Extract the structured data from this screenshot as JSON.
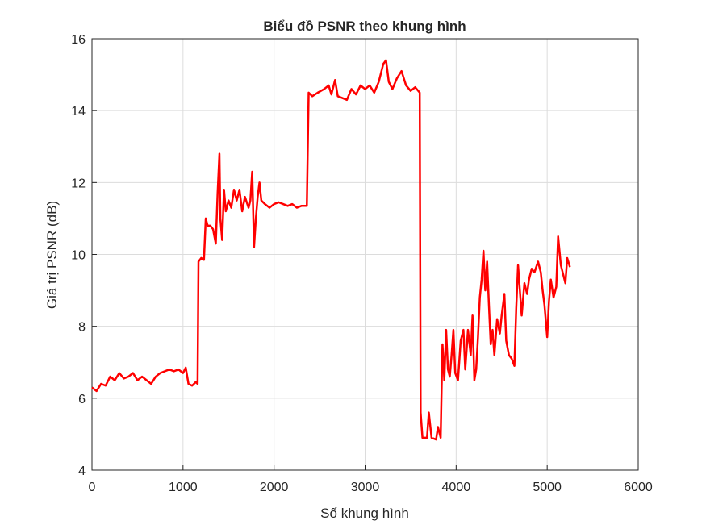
{
  "chart_data": {
    "type": "line",
    "title": "Biểu đồ PSNR theo khung hình",
    "xlabel": "Số khung hình",
    "ylabel": "Giá trị PSNR (dB)",
    "xlim": [
      0,
      6000
    ],
    "xticks": [
      0,
      1000,
      2000,
      3000,
      4000,
      5000,
      6000
    ],
    "ylim": [
      4,
      16
    ],
    "yticks": [
      4,
      6,
      8,
      10,
      12,
      14,
      16
    ],
    "grid": true,
    "series": [
      {
        "color": "#ff0000",
        "x": [
          0,
          50,
          100,
          150,
          200,
          250,
          300,
          350,
          400,
          450,
          500,
          550,
          600,
          650,
          700,
          750,
          800,
          850,
          900,
          950,
          1000,
          1030,
          1060,
          1100,
          1140,
          1160,
          1170,
          1200,
          1230,
          1250,
          1270,
          1300,
          1330,
          1360,
          1380,
          1400,
          1410,
          1430,
          1450,
          1470,
          1500,
          1530,
          1560,
          1590,
          1620,
          1650,
          1680,
          1720,
          1740,
          1760,
          1780,
          1800,
          1820,
          1840,
          1860,
          1900,
          1950,
          2000,
          2050,
          2100,
          2150,
          2200,
          2250,
          2300,
          2360,
          2380,
          2420,
          2480,
          2550,
          2600,
          2630,
          2670,
          2700,
          2750,
          2800,
          2850,
          2900,
          2950,
          3000,
          3050,
          3100,
          3150,
          3200,
          3230,
          3260,
          3300,
          3350,
          3400,
          3450,
          3500,
          3550,
          3600,
          3610,
          3630,
          3680,
          3700,
          3730,
          3780,
          3800,
          3830,
          3850,
          3870,
          3890,
          3910,
          3930,
          3950,
          3970,
          3990,
          4020,
          4050,
          4080,
          4100,
          4130,
          4160,
          4180,
          4200,
          4220,
          4240,
          4260,
          4280,
          4300,
          4320,
          4340,
          4360,
          4380,
          4400,
          4420,
          4450,
          4480,
          4500,
          4530,
          4550,
          4580,
          4610,
          4640,
          4660,
          4680,
          4700,
          4720,
          4750,
          4780,
          4800,
          4830,
          4860,
          4900,
          4930,
          4950,
          4970,
          5000,
          5020,
          5040,
          5070,
          5100,
          5120,
          5150,
          5180,
          5200,
          5220,
          5250
        ],
        "values": [
          6.3,
          6.2,
          6.4,
          6.35,
          6.6,
          6.5,
          6.7,
          6.55,
          6.6,
          6.7,
          6.5,
          6.6,
          6.5,
          6.4,
          6.6,
          6.7,
          6.75,
          6.8,
          6.75,
          6.8,
          6.7,
          6.85,
          6.4,
          6.35,
          6.45,
          6.4,
          9.8,
          9.9,
          9.85,
          11.0,
          10.8,
          10.8,
          10.7,
          10.3,
          11.7,
          12.8,
          11.0,
          10.4,
          11.8,
          11.2,
          11.5,
          11.3,
          11.8,
          11.5,
          11.8,
          11.2,
          11.6,
          11.3,
          11.5,
          12.3,
          10.2,
          11.0,
          11.6,
          12.0,
          11.5,
          11.4,
          11.3,
          11.4,
          11.45,
          11.4,
          11.35,
          11.4,
          11.3,
          11.35,
          11.35,
          14.5,
          14.4,
          14.5,
          14.6,
          14.7,
          14.45,
          14.85,
          14.4,
          14.35,
          14.3,
          14.6,
          14.45,
          14.7,
          14.6,
          14.7,
          14.5,
          14.8,
          15.3,
          15.4,
          14.8,
          14.6,
          14.9,
          15.1,
          14.7,
          14.55,
          14.65,
          14.5,
          5.6,
          4.9,
          4.9,
          5.6,
          4.9,
          4.85,
          5.2,
          4.9,
          7.5,
          6.5,
          7.9,
          6.8,
          6.6,
          7.2,
          7.9,
          6.7,
          6.5,
          7.6,
          7.9,
          6.8,
          7.9,
          7.2,
          8.3,
          6.5,
          6.8,
          7.7,
          8.8,
          9.3,
          10.1,
          9.0,
          9.8,
          8.6,
          7.5,
          7.9,
          7.2,
          8.2,
          7.8,
          8.3,
          8.9,
          7.6,
          7.2,
          7.1,
          6.9,
          8.5,
          9.7,
          9.0,
          8.3,
          9.2,
          8.9,
          9.3,
          9.6,
          9.5,
          9.8,
          9.5,
          9.0,
          8.6,
          7.7,
          8.7,
          9.3,
          8.8,
          9.1,
          10.5,
          9.7,
          9.4,
          9.2,
          9.9,
          9.65
        ]
      }
    ]
  }
}
